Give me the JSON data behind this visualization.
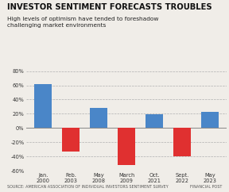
{
  "title": "INVESTOR SENTIMENT FORECASTS TROUBLES",
  "subtitle": "High levels of optimism have tended to foreshadow\nchallenging market environments",
  "source": "SOURCE: AMERICAN ASSOCIATION OF INDIVIDUAL INVESTORS SENTIMENT SURVEY",
  "watermark": "FINANCIAL POST",
  "categories": [
    "Jan.\n2000",
    "Feb.\n2003",
    "May\n2008",
    "March\n2009",
    "Oct.\n2021",
    "Sept.\n2022",
    "May\n2023"
  ],
  "values": [
    62,
    -33,
    28,
    -52,
    19,
    -40,
    23
  ],
  "bar_colors": [
    "#4a86c8",
    "#e03030",
    "#4a86c8",
    "#e03030",
    "#4a86c8",
    "#e03030",
    "#4a86c8"
  ],
  "ylim": [
    -60,
    80
  ],
  "yticks": [
    -60,
    -40,
    -20,
    0,
    20,
    40,
    60,
    80
  ],
  "ytick_labels": [
    "-60%",
    "-40%",
    "-20%",
    "0%",
    "20%",
    "40%",
    "60%",
    "80%"
  ],
  "background_color": "#f0ede8",
  "title_fontsize": 7.2,
  "subtitle_fontsize": 5.3,
  "tick_fontsize": 4.8,
  "source_fontsize": 3.5
}
